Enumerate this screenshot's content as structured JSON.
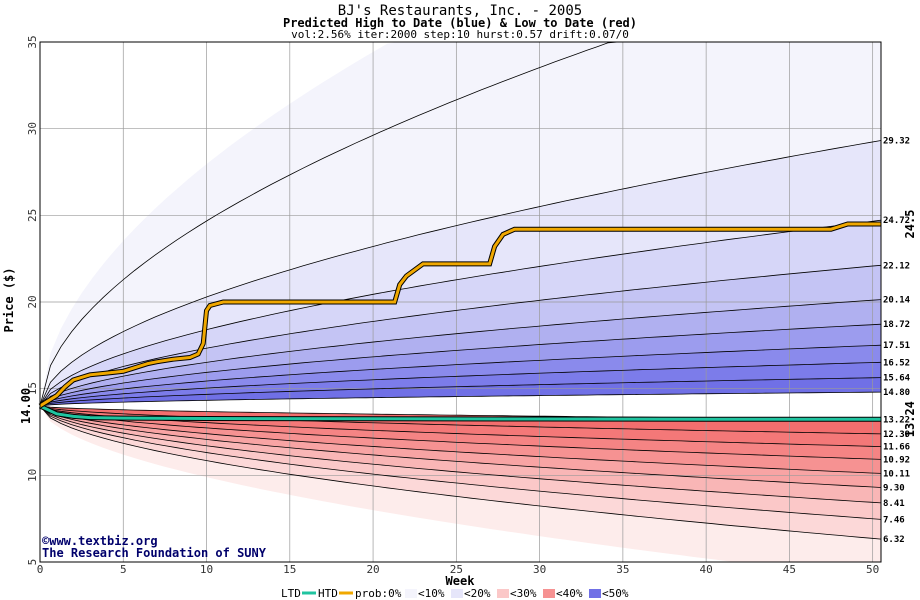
{
  "chart_data": {
    "type": "area",
    "title": "BJ's Restaurants, Inc. - 2005",
    "subtitle": "Predicted High to Date (blue) &  Low to Date (red)",
    "params": "vol:2.56% iter:2000 step:10 hurst:0.57 drift:0.07/0",
    "xlabel": "Week",
    "ylabel": "Price ($)",
    "xlim": [
      0,
      50.5
    ],
    "ylim": [
      5,
      35
    ],
    "x_ticks": [
      0,
      5,
      10,
      15,
      20,
      25,
      30,
      35,
      40,
      45,
      50
    ],
    "y_ticks": [
      5,
      10,
      15,
      20,
      25,
      30,
      35
    ],
    "start_price": 14.0,
    "start_label": "14.00",
    "band_levels_high": [
      29.32,
      24.72,
      22.12,
      20.14,
      18.72,
      17.51,
      16.52,
      15.64,
      14.8
    ],
    "band_levels_low": [
      13.22,
      12.39,
      11.66,
      10.92,
      10.11,
      9.3,
      8.41,
      7.46,
      6.32
    ],
    "band_labels": [
      "29.32",
      "24.72",
      "22.12",
      "20.14",
      "18.72",
      "17.51",
      "16.52",
      "15.64",
      "14.80",
      "13.22",
      "12.39",
      "11.66",
      "10.92",
      "10.11",
      "9.30",
      "8.41",
      "7.46",
      "6.32"
    ],
    "htd_series": {
      "x": [
        0,
        0.5,
        1,
        1.5,
        2,
        3,
        4,
        5,
        5.5,
        6,
        6.5,
        7,
        8,
        9,
        9.5,
        9.8,
        10,
        10.2,
        11,
        12,
        14,
        16,
        18,
        20,
        21.3,
        21.6,
        22,
        23,
        25,
        27,
        27.3,
        27.8,
        28.5,
        30,
        35,
        40,
        45,
        47.5,
        48.5,
        50.5
      ],
      "y": [
        14.0,
        14.3,
        14.6,
        15.1,
        15.5,
        15.8,
        15.9,
        16.0,
        16.15,
        16.3,
        16.45,
        16.55,
        16.7,
        16.8,
        17.0,
        17.6,
        19.5,
        19.8,
        20.0,
        20.0,
        20.0,
        20.0,
        20.0,
        20.0,
        20.0,
        21.0,
        21.5,
        22.2,
        22.2,
        22.2,
        23.2,
        23.9,
        24.2,
        24.2,
        24.2,
        24.2,
        24.2,
        24.2,
        24.5,
        24.5
      ]
    },
    "ltd_series": {
      "x": [
        0,
        1,
        2,
        3,
        5,
        10,
        20,
        30,
        40,
        50.5
      ],
      "y": [
        14.0,
        13.55,
        13.4,
        13.33,
        13.3,
        13.28,
        13.26,
        13.25,
        13.24,
        13.24
      ]
    },
    "htd_end_label": "24.5",
    "ltd_end_label": "13.24",
    "credit_lines": [
      "©www.textbiz.org",
      "The Research Foundation of SUNY"
    ],
    "legend": {
      "ltd": "LTD",
      "htd": "HTD",
      "prob": "prob:0%",
      "buckets": [
        "<10%",
        "<20%",
        "<30%",
        "<40%",
        "<50%"
      ]
    },
    "grid": true,
    "colors": {
      "htd": "#f0a800",
      "ltd": "#20c4a0",
      "blue_bands": [
        "#f4f4fc",
        "#e6e6fa",
        "#d6d6f8",
        "#c4c4f4",
        "#b0b0f0",
        "#9c9cee",
        "#8a8aec",
        "#7c7cea",
        "#7070e6"
      ],
      "red_bands": [
        "#fdeceb",
        "#fcd8d8",
        "#fbc8c8",
        "#f9b6b6",
        "#f8a4a4",
        "#f69292",
        "#f58484",
        "#f47878",
        "#f36e6e"
      ]
    }
  }
}
